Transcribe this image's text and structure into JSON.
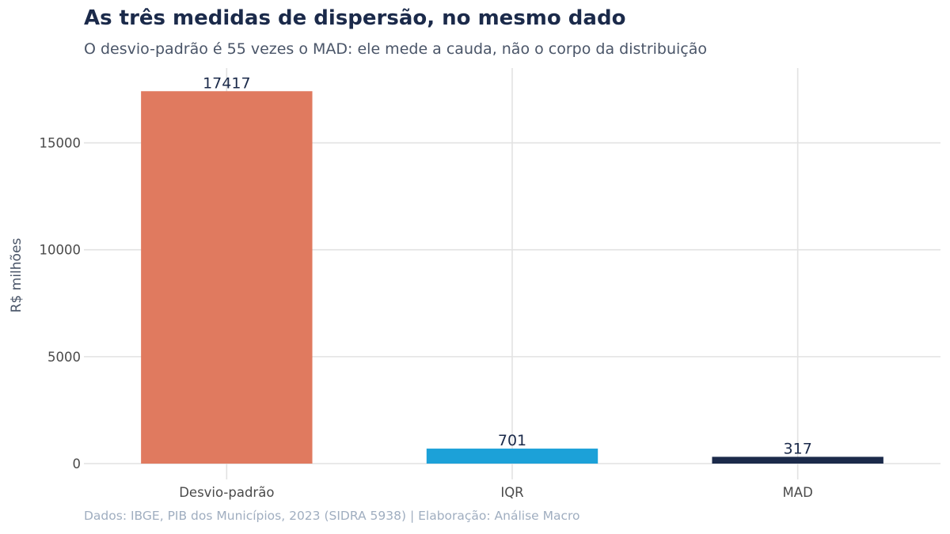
{
  "chart_data": {
    "type": "bar",
    "title": "As três medidas de dispersão, no mesmo dado",
    "subtitle": "O desvio-padrão é 55 vezes o MAD: ele mede a cauda, não o corpo da distribuição",
    "caption": "Dados: IBGE, PIB dos Municípios, 2023 (SIDRA 5938) | Elaboração: Análise Macro",
    "categories": [
      "Desvio-padrão",
      "IQR",
      "MAD"
    ],
    "values": [
      17417,
      701,
      317
    ],
    "data_labels": [
      "17417",
      "701",
      "317"
    ],
    "bar_colors": [
      "#e07a5f",
      "#1ca1d8",
      "#1b2a4a"
    ],
    "xlabel": "",
    "ylabel": "R$ milhões",
    "ylim": [
      0,
      18500
    ],
    "yticks": [
      0,
      5000,
      10000,
      15000
    ],
    "ytick_labels": [
      "0",
      "5000",
      "10000",
      "15000"
    ],
    "grid": true,
    "legend": "none"
  }
}
